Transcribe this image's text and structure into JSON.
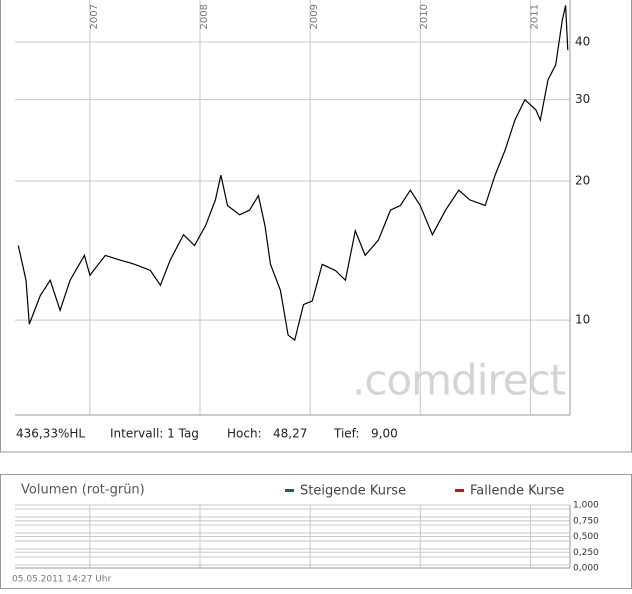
{
  "chart_data": [
    {
      "type": "line",
      "log_scale": true,
      "grid": true,
      "brand": ".comdirect",
      "x": [
        2006.35,
        2006.42,
        2006.45,
        2006.55,
        2006.64,
        2006.73,
        2006.82,
        2006.95,
        2007.0,
        2007.14,
        2007.27,
        2007.41,
        2007.55,
        2007.64,
        2007.73,
        2007.85,
        2007.95,
        2008.05,
        2008.14,
        2008.19,
        2008.25,
        2008.36,
        2008.45,
        2008.53,
        2008.59,
        2008.64,
        2008.73,
        2008.8,
        2008.86,
        2008.94,
        2009.02,
        2009.11,
        2009.23,
        2009.32,
        2009.41,
        2009.5,
        2009.62,
        2009.73,
        2009.82,
        2009.91,
        2010.0,
        2010.11,
        2010.23,
        2010.35,
        2010.45,
        2010.59,
        2010.68,
        2010.77,
        2010.86,
        2010.95,
        2011.05,
        2011.09,
        2011.16,
        2011.23,
        2011.29,
        2011.32,
        2011.34
      ],
      "values": [
        14.5,
        12.2,
        9.8,
        11.3,
        12.2,
        10.5,
        12.2,
        13.8,
        12.5,
        13.8,
        13.5,
        13.2,
        12.8,
        11.9,
        13.5,
        15.3,
        14.5,
        16.0,
        18.2,
        20.6,
        17.7,
        16.9,
        17.3,
        18.6,
        16.0,
        13.2,
        11.6,
        9.28,
        9.05,
        10.8,
        11.0,
        13.2,
        12.8,
        12.2,
        15.6,
        13.8,
        14.9,
        17.3,
        17.7,
        19.1,
        17.7,
        15.3,
        17.3,
        19.1,
        18.2,
        17.7,
        20.6,
        23.3,
        27.1,
        30.0,
        28.5,
        27.1,
        33.1,
        35.7,
        44.6,
        48.0,
        38.4
      ],
      "color": "#000000",
      "xlim": [
        2006.32,
        2011.36
      ],
      "xticks": [
        2007,
        2008,
        2009,
        2010,
        2011
      ],
      "ylim": [
        6.23,
        49.3
      ],
      "yticks": [
        10,
        20,
        30,
        40
      ],
      "info": {
        "performance": "436,33%HL",
        "interval": "Intervall: 1 Tag",
        "high_label": "Hoch:",
        "high": "48,27",
        "low_label": "Tief:",
        "low": "9,00"
      }
    },
    {
      "type": "bar",
      "title": "Volumen (rot-grün)",
      "grid": true,
      "series": [
        {
          "name": "Steigende Kurse",
          "color": "#1e6b3a",
          "values": []
        },
        {
          "name": "Fallende Kurse",
          "color": "#c0141c",
          "values": []
        }
      ],
      "xlim": [
        2006.32,
        2011.36
      ],
      "xticks": [
        2007,
        2008,
        2009,
        2010,
        2011
      ],
      "ylim": [
        0,
        1
      ],
      "yticks": [
        {
          "value": 0,
          "label": "0,000"
        },
        {
          "value": 0.25,
          "label": "0,250"
        },
        {
          "value": 0.5,
          "label": "0,500"
        },
        {
          "value": 0.75,
          "label": "0,750"
        },
        {
          "value": 1,
          "label": "1,000"
        }
      ],
      "timestamp": "05.05.2011 14:27 Uhr"
    }
  ]
}
